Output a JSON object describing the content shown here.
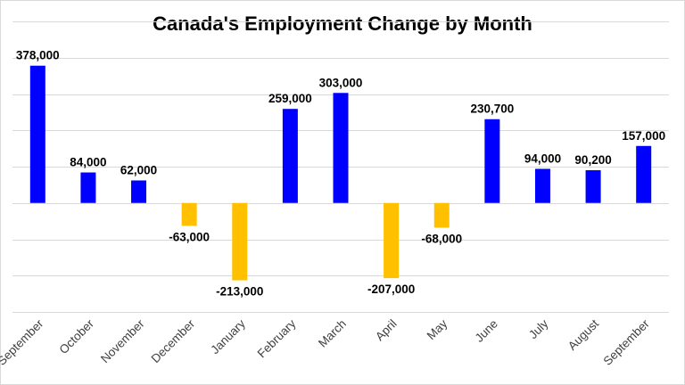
{
  "chart_data": {
    "type": "bar",
    "title": "Canada's Employment Change by Month",
    "categories": [
      "September",
      "October",
      "November",
      "December",
      "January",
      "February",
      "March",
      "April",
      "May",
      "June",
      "July",
      "August",
      "September"
    ],
    "values": [
      378000,
      84000,
      62000,
      -63000,
      -213000,
      259000,
      303000,
      -207000,
      -68000,
      230700,
      94000,
      90200,
      157000
    ],
    "data_labels": [
      "378,000",
      "84,000",
      "62,000",
      "-63,000",
      "-213,000",
      "259,000",
      "303,000",
      "-207,000",
      "-68,000",
      "230,700",
      "94,000",
      "90,200",
      "157,000"
    ],
    "ylim": [
      -300000,
      500000
    ],
    "y_tick_step": 100000,
    "y_tick_labels_shown": false,
    "grid": true,
    "legend": "none",
    "colors": {
      "positive": "#0000ff",
      "negative": "#ffc000",
      "grid": "#d9d9d9"
    }
  }
}
